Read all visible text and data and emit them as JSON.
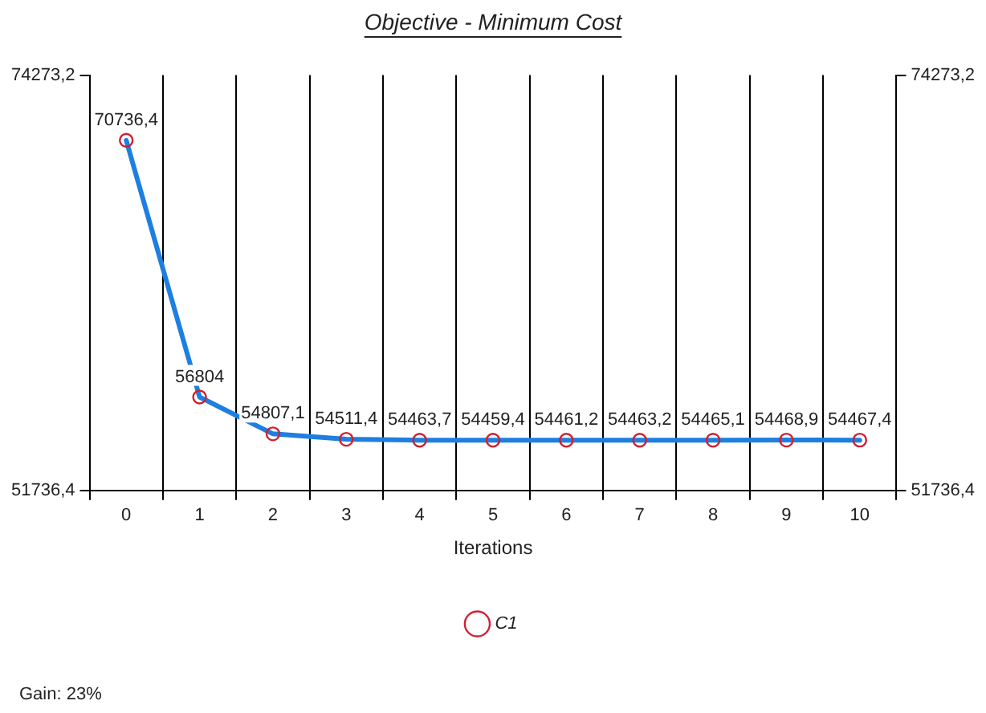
{
  "chart_data": {
    "type": "line",
    "title": "Objective - Minimum Cost",
    "xlabel": "Iterations",
    "categories": [
      "0",
      "1",
      "2",
      "3",
      "4",
      "5",
      "6",
      "7",
      "8",
      "9",
      "10"
    ],
    "series": [
      {
        "name": "C1",
        "color": "#1e7fe0",
        "values": [
          70736.4,
          56804,
          54807.1,
          54511.4,
          54463.7,
          54459.4,
          54461.2,
          54463.2,
          54465.1,
          54468.9,
          54467.4
        ],
        "value_labels": [
          "70736,4",
          "56804",
          "54807,1",
          "54511,4",
          "54463,7",
          "54459,4",
          "54461,2",
          "54463,2",
          "54465,1",
          "54468,9",
          "54467,4"
        ]
      }
    ],
    "ylim": [
      51736.4,
      74273.2
    ],
    "yticks": [
      {
        "value": 51736.4,
        "label": "51736,4"
      },
      {
        "value": 74273.2,
        "label": "74273,2"
      }
    ],
    "y2lim": [
      51736.4,
      74273.2
    ],
    "y2ticks": [
      {
        "value": 51736.4,
        "label": "51736,4"
      },
      {
        "value": 74273.2,
        "label": "74273,2"
      }
    ],
    "grid": "x",
    "legend": "bottom",
    "marker": "circle",
    "line_style": "solid",
    "annotations": [
      "Gain: 23%"
    ]
  }
}
